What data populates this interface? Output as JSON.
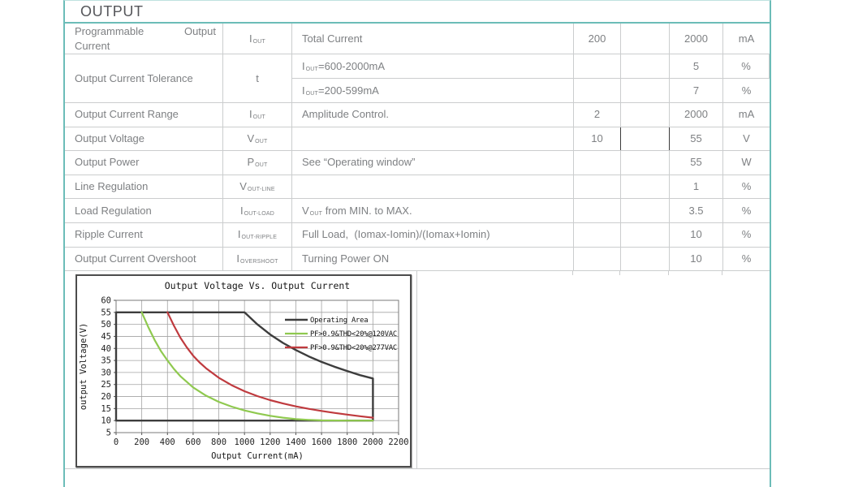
{
  "header": {
    "title": "OUTPUT"
  },
  "colors": {
    "accent_teal": "#6cbcb8",
    "table_border": "#cbcdce",
    "table_text": "#7e8083",
    "dark_border": "#3a3a3a",
    "chart_black": "#3d3d3d",
    "chart_green": "#8fc94f",
    "chart_red": "#bf3a3e"
  },
  "table": {
    "rows": [
      {
        "n1a": "Programmable",
        "n1b": "Output",
        "n2": "Current",
        "sym": "I",
        "sub": "OUT",
        "cond": "Total Current",
        "min": "200",
        "typ": "",
        "max": "2000",
        "unit": "mA"
      },
      {
        "name": "Output Current Tolerance",
        "sym": "t",
        "sub": "",
        "subrows": [
          {
            "pre": "I",
            "sub": "OUT",
            "post": "=600-2000mA",
            "min": "",
            "typ": "",
            "max": "5",
            "unit": "%"
          },
          {
            "pre": "I",
            "sub": "OUT",
            "post": "=200-599mA",
            "min": "",
            "typ": "",
            "max": "7",
            "unit": "%"
          }
        ]
      },
      {
        "name": "Output Current Range",
        "sym": "I",
        "sub": "OUT",
        "cond": "Amplitude Control.",
        "min": "2",
        "typ": "",
        "max": "2000",
        "unit": "mA"
      },
      {
        "name": "Output Voltage",
        "sym": "V",
        "sub": "OUT",
        "cond": "",
        "min": "10",
        "typ": "",
        "max": "55",
        "unit": "V"
      },
      {
        "name": "Output Power",
        "sym": "P",
        "sub": "OUT",
        "cond": "See “Operating window”",
        "min": "",
        "typ": "",
        "max": "55",
        "unit": "W"
      },
      {
        "name": "Line Regulation",
        "sym": "V",
        "sub": "OUT-LINE",
        "cond": "",
        "min": "",
        "typ": "",
        "max": "1",
        "unit": "%"
      },
      {
        "name": "Load Regulation",
        "sym": "I",
        "sub": "OUT-LOAD",
        "pre": "V",
        "presub": "OUT",
        "post": " from MIN. to MAX.",
        "min": "",
        "typ": "",
        "max": "3.5",
        "unit": "%"
      },
      {
        "name": "Ripple Current",
        "sym": "I",
        "sub": "OUT-RIPPLE",
        "cond": "Full Load,  (Iomax-Iomin)/(Iomax+Iomin)",
        "min": "",
        "typ": "",
        "max": "10",
        "unit": "%"
      },
      {
        "name": "Output Current Overshoot",
        "sym": "I",
        "sub": "OVERSHOOT",
        "cond": "Turning Power ON",
        "min": "",
        "typ": "",
        "max": "10",
        "unit": "%"
      }
    ]
  },
  "chart_data": {
    "type": "line",
    "title": "Output Voltage Vs. Output Current",
    "xlabel": "Output Current(mA)",
    "ylabel": "output Voltage(V)",
    "xlim": [
      0,
      2200
    ],
    "ylim": [
      5,
      60
    ],
    "xticks": [
      0,
      200,
      400,
      600,
      800,
      1000,
      1200,
      1400,
      1600,
      1800,
      2000,
      2200
    ],
    "yticks": [
      5,
      10,
      15,
      20,
      25,
      30,
      35,
      40,
      45,
      50,
      55,
      60
    ],
    "grid": true,
    "legend_position": "top-right-inside",
    "series": [
      {
        "name": "Operating Area",
        "color": "#3d3d3d",
        "width": 2.4,
        "points": [
          [
            0,
            10
          ],
          [
            0,
            55
          ],
          [
            1000,
            55
          ],
          [
            1100,
            50
          ],
          [
            1200,
            45.8
          ],
          [
            1300,
            42.3
          ],
          [
            1400,
            39.3
          ],
          [
            1500,
            36.7
          ],
          [
            1600,
            34.4
          ],
          [
            1700,
            32.4
          ],
          [
            1800,
            30.6
          ],
          [
            1900,
            28.9
          ],
          [
            2000,
            27.5
          ],
          [
            2000,
            10
          ],
          [
            0,
            10
          ]
        ]
      },
      {
        "name": "PF>0.9&THD<20%@120VAC",
        "color": "#8fc94f",
        "width": 2.2,
        "points": [
          [
            200,
            55
          ],
          [
            250,
            49
          ],
          [
            300,
            43.5
          ],
          [
            350,
            38.8
          ],
          [
            400,
            35
          ],
          [
            450,
            31.5
          ],
          [
            500,
            28.5
          ],
          [
            600,
            23.8
          ],
          [
            700,
            20.4
          ],
          [
            800,
            17.8
          ],
          [
            900,
            15.8
          ],
          [
            1000,
            14.2
          ],
          [
            1100,
            13
          ],
          [
            1200,
            12
          ],
          [
            1300,
            11.2
          ],
          [
            1400,
            10.6
          ],
          [
            1500,
            10.3
          ],
          [
            1600,
            10.1
          ],
          [
            1800,
            10
          ],
          [
            2000,
            10
          ]
        ]
      },
      {
        "name": "PF>0.9&THD<20%@277VAC",
        "color": "#bf3a3e",
        "width": 2.2,
        "points": [
          [
            400,
            55
          ],
          [
            450,
            49.5
          ],
          [
            500,
            44.5
          ],
          [
            550,
            40.5
          ],
          [
            600,
            37
          ],
          [
            650,
            34.2
          ],
          [
            700,
            31.8
          ],
          [
            800,
            27.8
          ],
          [
            900,
            24.7
          ],
          [
            1000,
            22.2
          ],
          [
            1100,
            20.2
          ],
          [
            1200,
            18.5
          ],
          [
            1300,
            17.1
          ],
          [
            1400,
            15.9
          ],
          [
            1500,
            14.9
          ],
          [
            1600,
            14
          ],
          [
            1700,
            13.2
          ],
          [
            1800,
            12.5
          ],
          [
            1900,
            11.8
          ],
          [
            2000,
            11.2
          ]
        ]
      }
    ]
  }
}
